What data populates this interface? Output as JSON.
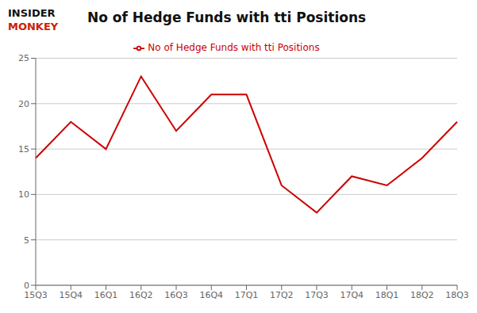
{
  "chart_data": {
    "type": "line",
    "title": "No of Hedge Funds with tti Positions",
    "annotations": [
      {
        "text": "INSIDER",
        "color": "#111111"
      },
      {
        "text": "MONKEY",
        "color": "#cc2200"
      }
    ],
    "categories": [
      "15Q3",
      "15Q4",
      "16Q1",
      "16Q2",
      "16Q3",
      "16Q4",
      "17Q1",
      "17Q2",
      "17Q3",
      "17Q4",
      "18Q1",
      "18Q2",
      "18Q3"
    ],
    "series": [
      {
        "name": "No of Hedge Funds with tti Positions",
        "color": "#cc0000",
        "values": [
          14,
          18,
          15,
          23,
          17,
          21,
          21,
          11,
          8,
          12,
          11,
          14,
          18
        ]
      }
    ],
    "ylim": [
      0,
      25
    ],
    "yticks": [
      0,
      5,
      10,
      15,
      20,
      25
    ],
    "grid": true,
    "legend": "top"
  }
}
